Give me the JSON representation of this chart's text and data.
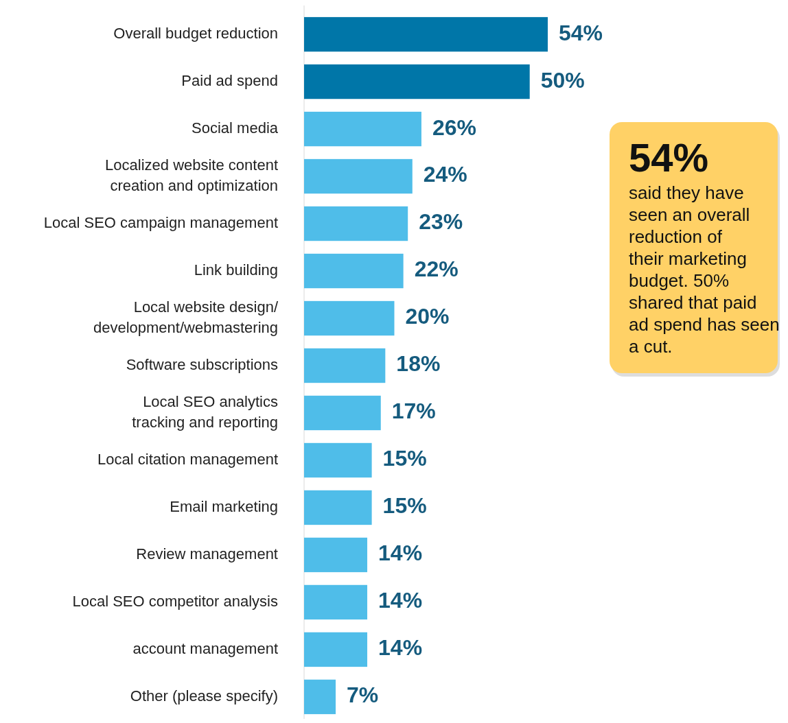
{
  "chart_data": {
    "type": "bar",
    "orientation": "horizontal",
    "categories": [
      "Overall budget reduction",
      "Paid ad spend",
      "Social media",
      "Localized website content\ncreation and optimization",
      "Local SEO campaign management",
      "Link building",
      "Local website design/\ndevelopment/webmastering",
      "Software subscriptions",
      "Local SEO analytics\ntracking and reporting",
      "Local citation management",
      "Email marketing",
      "Review management",
      "Local SEO competitor analysis",
      "account management",
      "Other (please specify)"
    ],
    "values": [
      54,
      50,
      26,
      24,
      23,
      22,
      20,
      18,
      17,
      15,
      15,
      14,
      14,
      14,
      7
    ],
    "colors": [
      "#0076a8",
      "#0076a8",
      "#4fbde9",
      "#4fbde9",
      "#4fbde9",
      "#4fbde9",
      "#4fbde9",
      "#4fbde9",
      "#4fbde9",
      "#4fbde9",
      "#4fbde9",
      "#4fbde9",
      "#4fbde9",
      "#4fbde9",
      "#4fbde9"
    ],
    "value_labels": [
      "54%",
      "50%",
      "26%",
      "24%",
      "23%",
      "22%",
      "20%",
      "18%",
      "17%",
      "15%",
      "15%",
      "14%",
      "14%",
      "14%",
      "7%"
    ],
    "annotations": [
      "54%",
      "said they have seen an overall reduction of their marketing budget. 50% shared that paid ad spend has seen a cut."
    ]
  }
}
